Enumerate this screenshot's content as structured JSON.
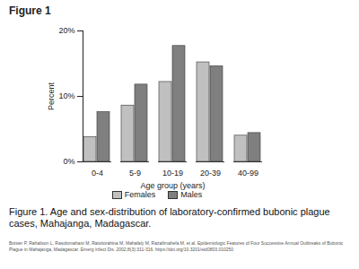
{
  "chart_data": {
    "type": "bar",
    "title": "Figure 1",
    "caption": "Figure 1. Age and sex-distribution of laboratory-confirmed bubonic plague cases, Mahajanga, Madagascar.",
    "source": "Boisier P, Rahalison L, Rasolomaharo M, Ratsitorahina M, Mahafaly M, Razafimahefa M, et al. Epidemiologic Features of Four Successive Annual Outbreaks of Bubonic Plague in Mahajanga, Madagascar. Emerg Infect Dis. 2002;8(3):311-316. https://doi.org/10.3201/eid0803.010250",
    "x_label": "Age group (years)",
    "y_label": "Percent",
    "categories": [
      "0-4",
      "5-9",
      "10-19",
      "20-39",
      "40-99"
    ],
    "series": [
      {
        "name": "Females",
        "color": "#c0c0c0",
        "values": [
          3.8,
          8.6,
          12.2,
          15.2,
          4.0
        ]
      },
      {
        "name": "Males",
        "color": "#7f7f7f",
        "values": [
          7.6,
          11.8,
          17.7,
          14.6,
          4.4
        ]
      }
    ],
    "ylim": [
      0,
      20
    ],
    "yticks": [
      {
        "value": 0,
        "label": "0%"
      },
      {
        "value": 10,
        "label": "10%"
      },
      {
        "value": 20,
        "label": "20%"
      }
    ],
    "grid": false,
    "legend": "bottom"
  }
}
